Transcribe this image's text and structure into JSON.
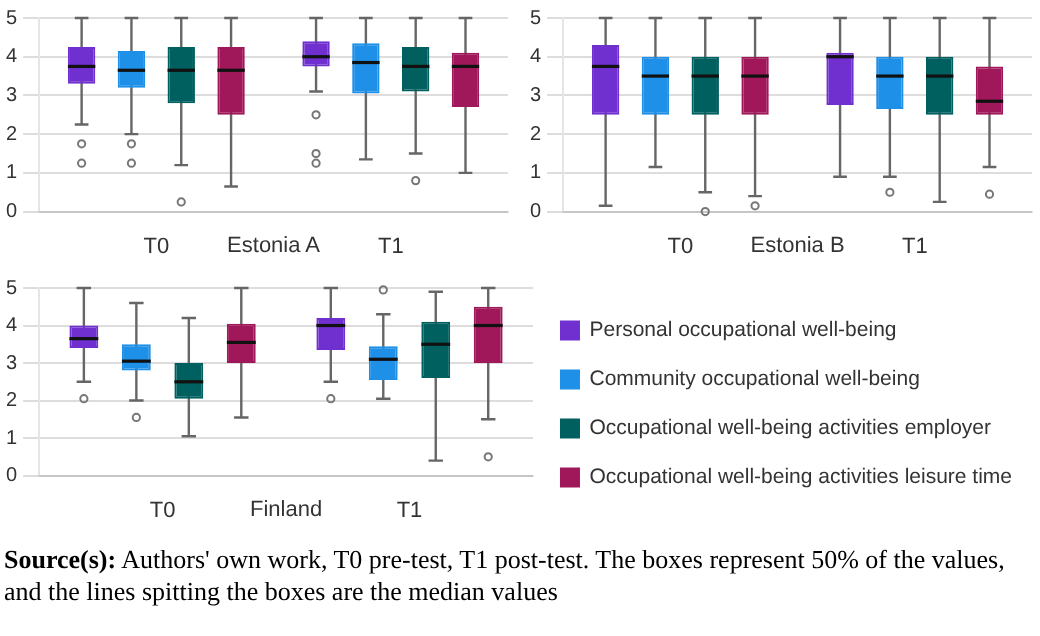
{
  "chart_data": [
    {
      "type": "box",
      "xlabel": "Estonia A",
      "categories": [
        "T0",
        "T1"
      ],
      "ylim": [
        0,
        5
      ],
      "yticks": [
        0,
        1,
        2,
        3,
        4,
        5
      ],
      "grid": "y",
      "legend": false,
      "series": [
        {
          "color": "#7030d0",
          "boxes": [
            {
              "low": 2.25,
              "q1": 3.3,
              "median": 3.75,
              "q3": 4.25,
              "high": 5,
              "outliers": [
                1.75,
                1.25
              ]
            },
            {
              "low": 3.1,
              "q1": 3.75,
              "median": 4.0,
              "q3": 4.4,
              "high": 5,
              "outliers": [
                2.5,
                1.5,
                1.25
              ]
            }
          ]
        },
        {
          "color": "#1e90e8",
          "boxes": [
            {
              "low": 2.0,
              "q1": 3.2,
              "median": 3.65,
              "q3": 4.15,
              "high": 5,
              "outliers": [
                1.75,
                1.25
              ]
            },
            {
              "low": 1.35,
              "q1": 3.05,
              "median": 3.85,
              "q3": 4.35,
              "high": 5
            }
          ]
        },
        {
          "color": "#005f5f",
          "boxes": [
            {
              "low": 1.2,
              "q1": 2.8,
              "median": 3.65,
              "q3": 4.25,
              "high": 5,
              "outliers": [
                0.25
              ]
            },
            {
              "low": 1.5,
              "q1": 3.1,
              "median": 3.75,
              "q3": 4.25,
              "high": 5,
              "outliers": [
                0.8
              ]
            }
          ]
        },
        {
          "color": "#a0185a",
          "boxes": [
            {
              "low": 0.65,
              "q1": 2.5,
              "median": 3.65,
              "q3": 4.25,
              "high": 5
            },
            {
              "low": 1.0,
              "q1": 2.7,
              "median": 3.75,
              "q3": 4.1,
              "high": 5
            }
          ]
        }
      ]
    },
    {
      "type": "box",
      "xlabel": "Estonia B",
      "categories": [
        "T0",
        "T1"
      ],
      "ylim": [
        0,
        5
      ],
      "yticks": [
        0,
        1,
        2,
        3,
        4,
        5
      ],
      "grid": "y",
      "legend": false,
      "series": [
        {
          "color": "#7030d0",
          "boxes": [
            {
              "low": 0.15,
              "q1": 2.5,
              "median": 3.75,
              "q3": 4.3,
              "high": 5
            },
            {
              "low": 0.9,
              "q1": 2.75,
              "median": 4.0,
              "q3": 4.1,
              "high": 5
            }
          ]
        },
        {
          "color": "#1e90e8",
          "boxes": [
            {
              "low": 1.15,
              "q1": 2.5,
              "median": 3.5,
              "q3": 4.0,
              "high": 5
            },
            {
              "low": 0.9,
              "q1": 2.65,
              "median": 3.5,
              "q3": 4.0,
              "high": 5,
              "outliers": [
                0.5
              ]
            }
          ]
        },
        {
          "color": "#005f5f",
          "boxes": [
            {
              "low": 0.5,
              "q1": 2.5,
              "median": 3.5,
              "q3": 4.0,
              "high": 5,
              "outliers": [
                0.0
              ]
            },
            {
              "low": 0.25,
              "q1": 2.5,
              "median": 3.5,
              "q3": 4.0,
              "high": 5
            }
          ]
        },
        {
          "color": "#a0185a",
          "boxes": [
            {
              "low": 0.4,
              "q1": 2.5,
              "median": 3.5,
              "q3": 4.0,
              "high": 5,
              "outliers": [
                0.15
              ]
            },
            {
              "low": 1.15,
              "q1": 2.5,
              "median": 2.85,
              "q3": 3.75,
              "high": 5,
              "outliers": [
                0.45
              ]
            }
          ]
        }
      ]
    },
    {
      "type": "box",
      "xlabel": "Finland",
      "categories": [
        "T0",
        "T1"
      ],
      "ylim": [
        0,
        5
      ],
      "yticks": [
        0,
        1,
        2,
        3,
        4,
        5
      ],
      "grid": "y",
      "legend": "right",
      "annotations": [
        "Source(s): Authors' own work, T0 pre-test, T1 post-test. The boxes represent 50% of the values, and the lines spitting the boxes are the median values"
      ],
      "series": [
        {
          "name": "Personal occupational well-being",
          "color": "#7030d0",
          "boxes": [
            {
              "low": 2.5,
              "q1": 3.4,
              "median": 3.65,
              "q3": 4.0,
              "high": 5,
              "outliers": [
                2.05
              ]
            },
            {
              "low": 2.5,
              "q1": 3.35,
              "median": 4.0,
              "q3": 4.2,
              "high": 5,
              "outliers": [
                2.05
              ]
            }
          ]
        },
        {
          "name": "Community occupational well-being",
          "color": "#1e90e8",
          "boxes": [
            {
              "low": 2.0,
              "q1": 2.8,
              "median": 3.05,
              "q3": 3.5,
              "high": 4.6,
              "outliers": [
                1.55
              ]
            },
            {
              "low": 2.05,
              "q1": 2.55,
              "median": 3.1,
              "q3": 3.45,
              "high": 4.3,
              "outliers": [
                4.95
              ]
            }
          ]
        },
        {
          "name": "Occupational well-being activities employer",
          "color": "#005f5f",
          "boxes": [
            {
              "low": 1.05,
              "q1": 2.05,
              "median": 2.5,
              "q3": 3.0,
              "high": 4.2
            },
            {
              "low": 0.4,
              "q1": 2.6,
              "median": 3.5,
              "q3": 4.1,
              "high": 4.9
            }
          ]
        },
        {
          "name": "Occupational well-being activities leisure time",
          "color": "#a0185a",
          "boxes": [
            {
              "low": 1.55,
              "q1": 3.0,
              "median": 3.55,
              "q3": 4.05,
              "high": 5
            },
            {
              "low": 1.5,
              "q1": 3.0,
              "median": 4.0,
              "q3": 4.5,
              "high": 5,
              "outliers": [
                0.5
              ]
            }
          ]
        }
      ]
    }
  ]
}
